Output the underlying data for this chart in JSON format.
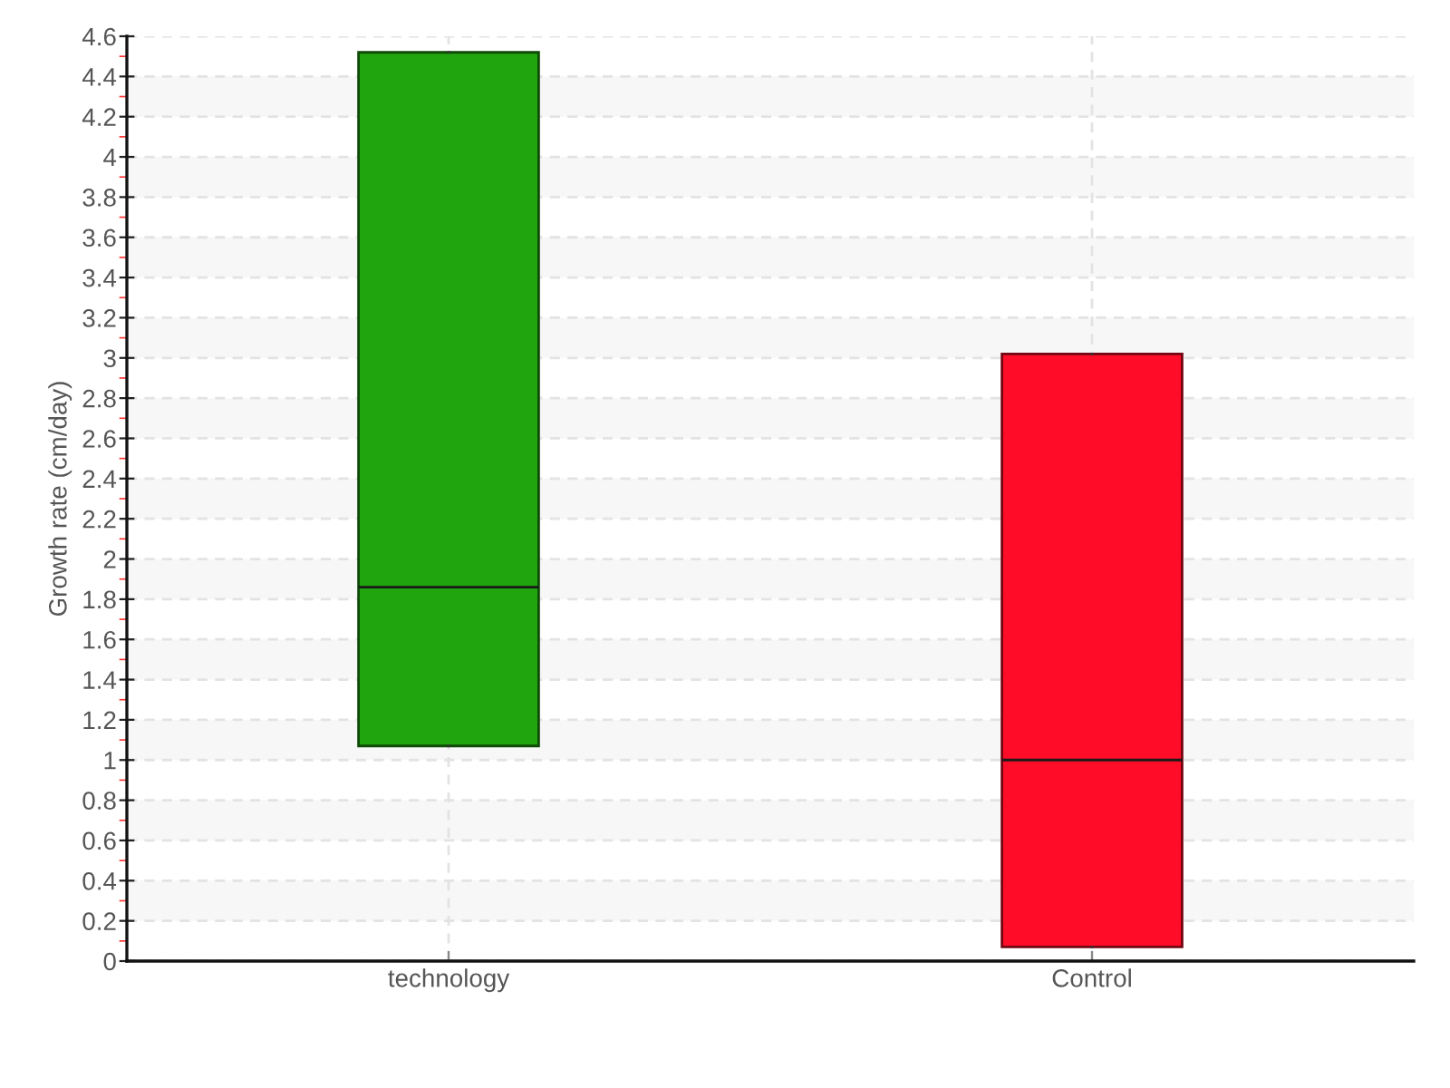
{
  "chart_data": {
    "type": "box",
    "ylabel": "Growth rate (cm/day)",
    "categories": [
      "technology",
      "Control"
    ],
    "boxes": [
      {
        "low": 1.07,
        "q1": 1.07,
        "median": 1.86,
        "q3": 4.52,
        "high": 4.52
      },
      {
        "low": 0.07,
        "q1": 0.07,
        "median": 1.0,
        "q3": 3.02,
        "high": 3.02
      }
    ],
    "colors": [
      "#21a50f",
      "#ff0d28"
    ],
    "ylim": [
      0,
      4.6
    ],
    "yticks": [
      0,
      {
        "value": 0.1,
        "label": null
      },
      0.2,
      {
        "value": 0.3,
        "label": null
      },
      0.4,
      {
        "value": 0.5,
        "label": null
      },
      0.6,
      {
        "value": 0.7,
        "label": null
      },
      0.8,
      {
        "value": 0.9,
        "label": null
      },
      1,
      {
        "value": 1.1,
        "label": null
      },
      1.2,
      {
        "value": 1.3,
        "label": null
      },
      1.4,
      {
        "value": 1.5,
        "label": null
      },
      1.6,
      {
        "value": 1.7,
        "label": null
      },
      1.8,
      {
        "value": 1.9,
        "label": null
      },
      2,
      {
        "value": 2.1,
        "label": null
      },
      2.2,
      {
        "value": 2.3,
        "label": null
      },
      2.4,
      {
        "value": 2.5,
        "label": null
      },
      2.6,
      {
        "value": 2.7,
        "label": null
      },
      2.8,
      {
        "value": 2.9,
        "label": null
      },
      3,
      {
        "value": 3.1,
        "label": null
      },
      3.2,
      {
        "value": 3.3,
        "label": null
      },
      3.4,
      {
        "value": 3.5,
        "label": null
      },
      3.6,
      {
        "value": 3.7,
        "label": null
      },
      3.8,
      {
        "value": 3.9,
        "label": null
      },
      4,
      {
        "value": 4.1,
        "label": null
      },
      4.2,
      {
        "value": 4.3,
        "label": null
      },
      4.4,
      {
        "value": 4.5,
        "label": null
      },
      4.6
    ],
    "grid": true
  }
}
